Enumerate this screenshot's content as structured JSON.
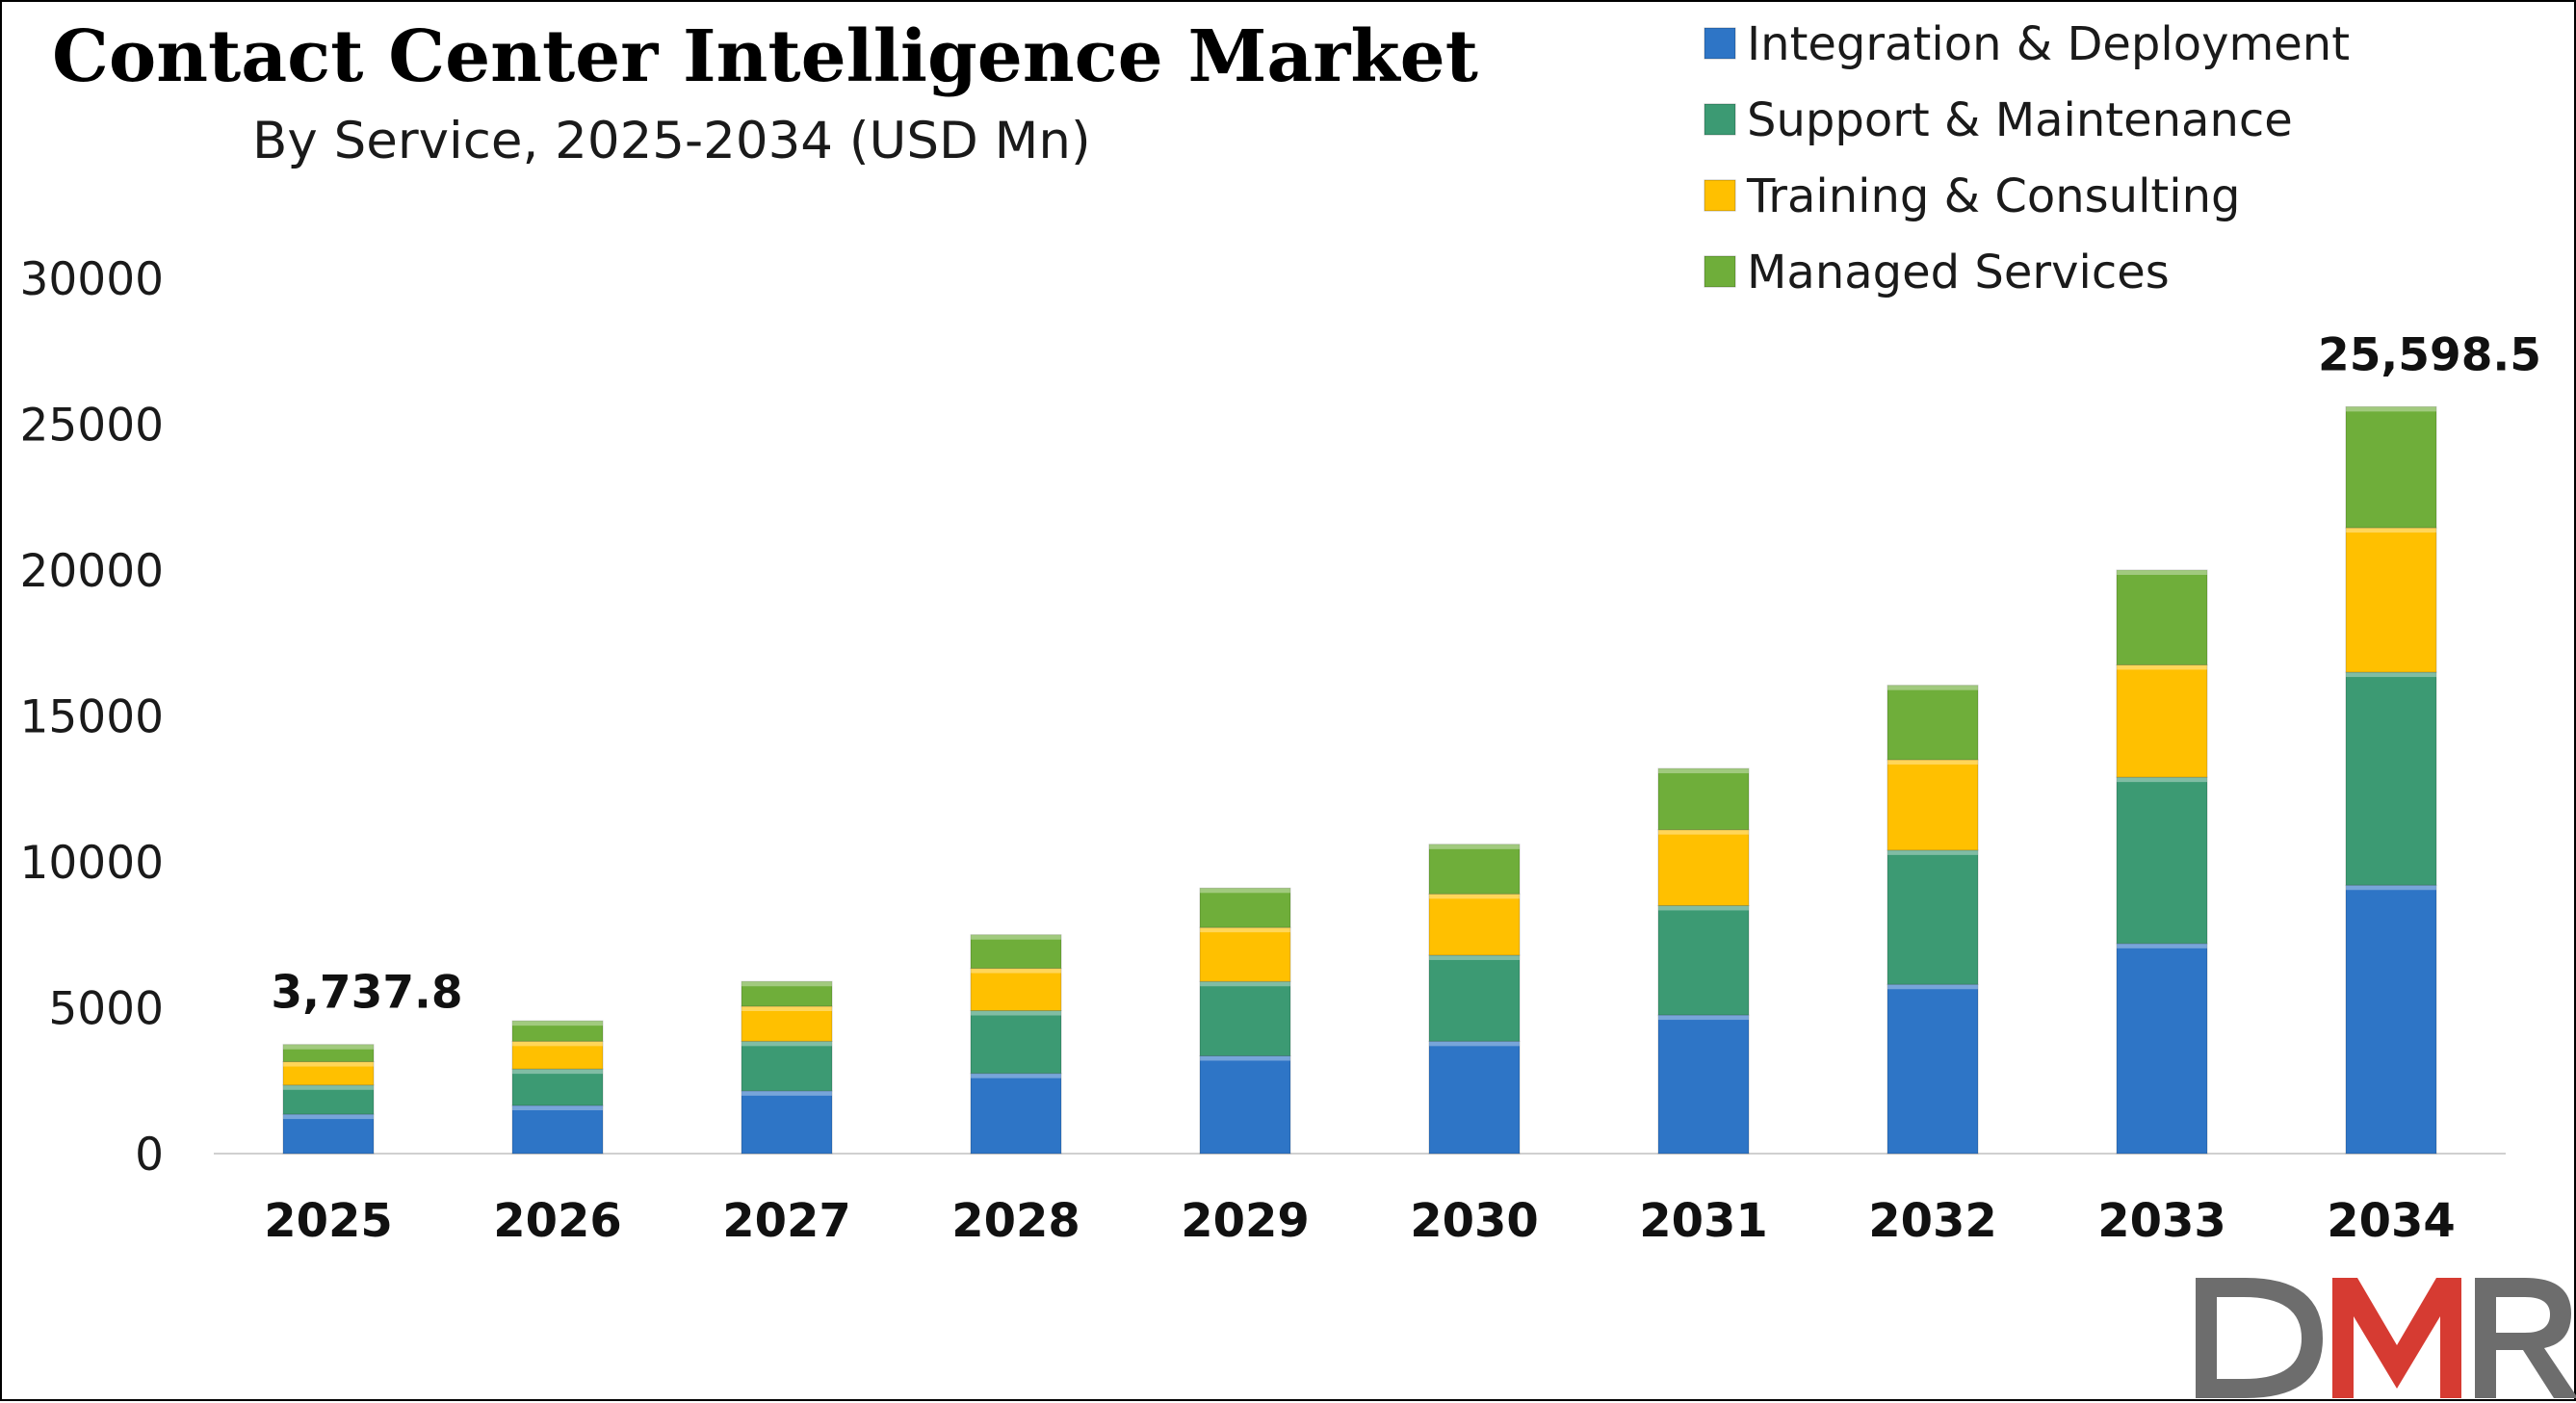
{
  "chart_data": {
    "type": "bar",
    "stacked": true,
    "title": "Contact Center Intelligence Market",
    "subtitle": "By Service, 2025-2034 (USD Mn)",
    "categories": [
      "2025",
      "2026",
      "2027",
      "2028",
      "2029",
      "2030",
      "2031",
      "2032",
      "2033",
      "2034"
    ],
    "series": [
      {
        "name": "Integration & Deployment",
        "color": "#2E75C6",
        "values": [
          1350,
          1650,
          2150,
          2750,
          3350,
          3850,
          4750,
          5800,
          7200,
          9200
        ]
      },
      {
        "name": "Support & Maintenance",
        "color": "#3C9A73",
        "values": [
          1000,
          1250,
          1700,
          2150,
          2550,
          2950,
          3750,
          4600,
          5700,
          7300
        ]
      },
      {
        "name": "Training & Consulting",
        "color": "#FFC000",
        "values": [
          800,
          950,
          1200,
          1450,
          1850,
          2100,
          2600,
          3100,
          3850,
          4950
        ]
      },
      {
        "name": "Managed Services",
        "color": "#6FAE3A",
        "values": [
          587.8,
          700,
          850,
          1150,
          1350,
          1700,
          2100,
          2550,
          3250,
          4148.5
        ]
      }
    ],
    "data_labels": [
      {
        "category": "2025",
        "text": "3,737.8"
      },
      {
        "category": "2034",
        "text": "25,598.5"
      }
    ],
    "y_ticks": [
      "0",
      "5000",
      "10000",
      "15000",
      "20000",
      "25000",
      "30000"
    ],
    "ylim": [
      0,
      30000
    ],
    "grid": false,
    "legend_position": "top-right",
    "watermark": "DMR"
  }
}
